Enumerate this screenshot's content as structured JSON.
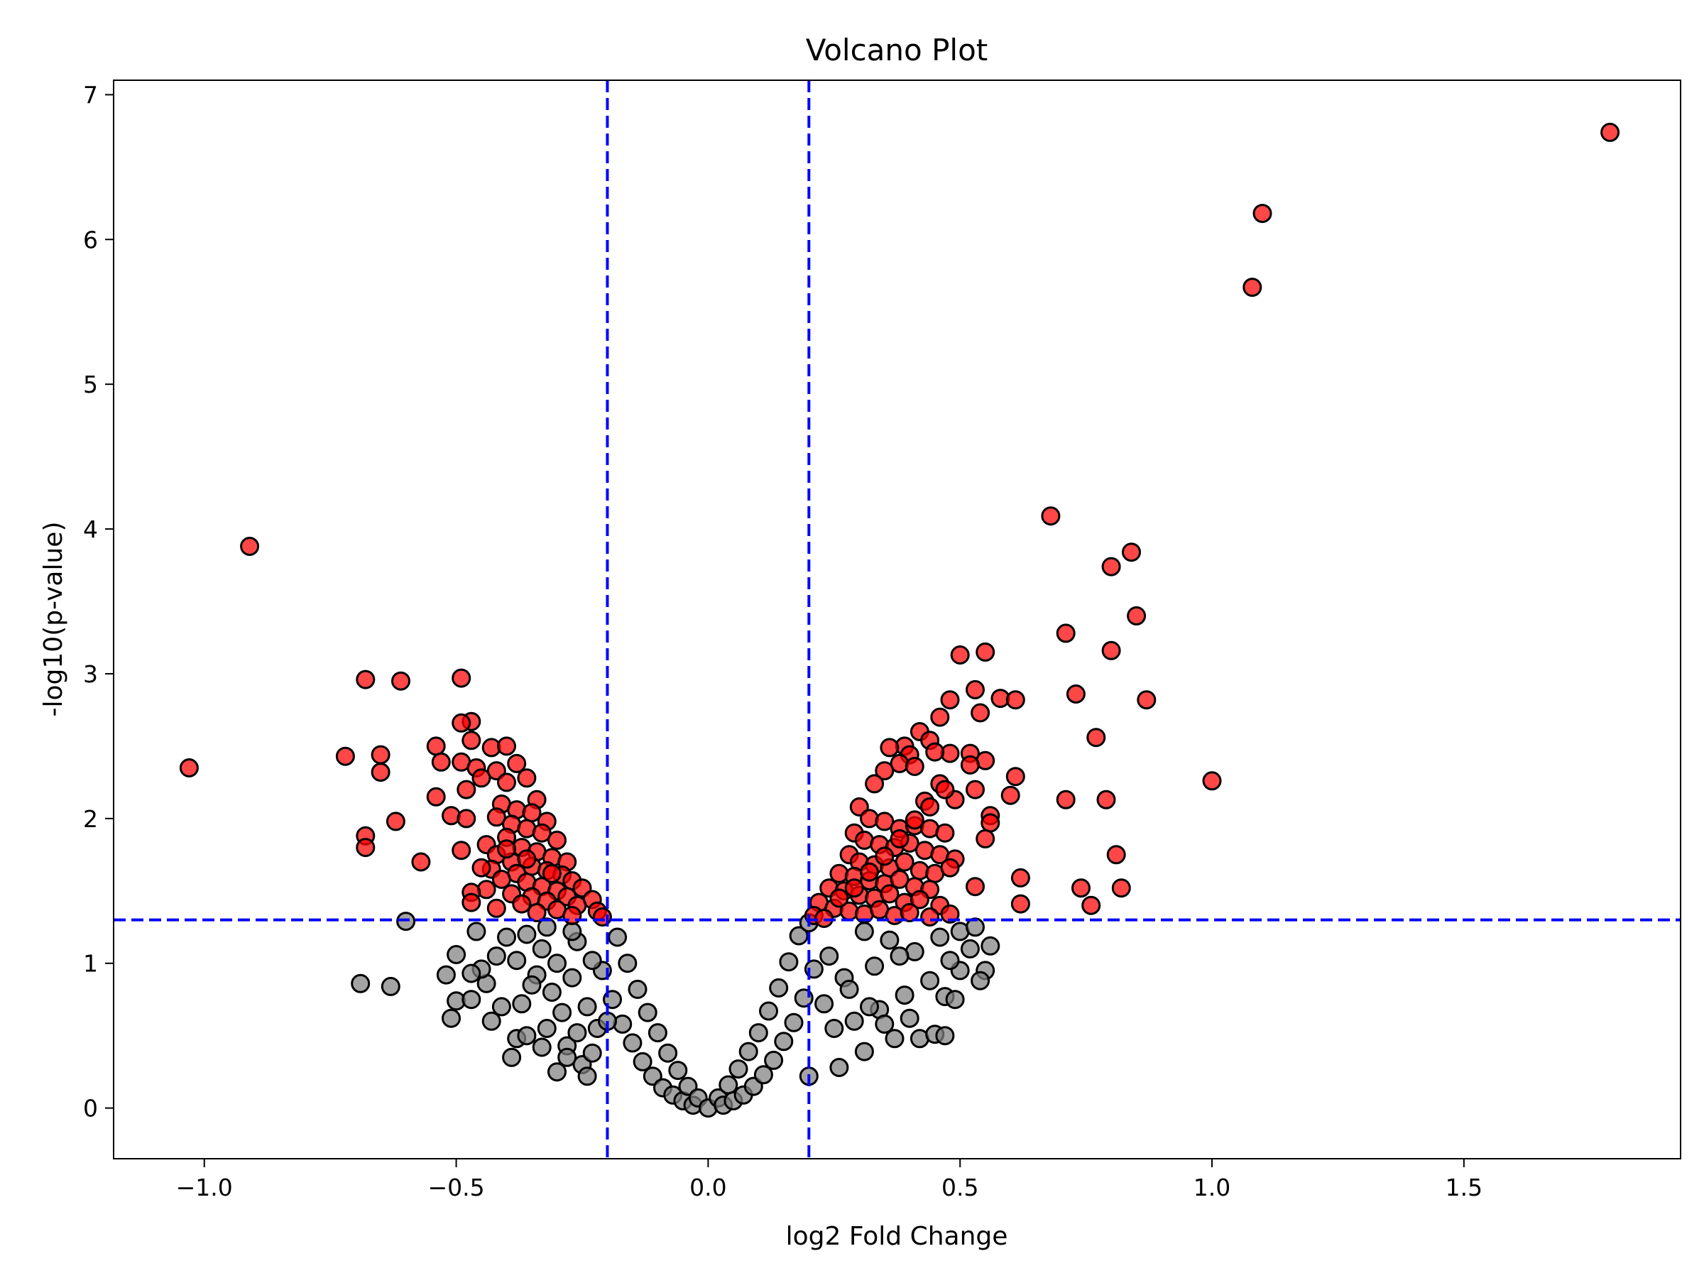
{
  "chart_data": {
    "type": "scatter",
    "title": "Volcano Plot",
    "xlabel": "log2 Fold Change",
    "ylabel": "-log10(p-value)",
    "xlim": [
      -1.18,
      1.93
    ],
    "ylim": [
      -0.35,
      7.1
    ],
    "xticks": [
      -1.0,
      -0.5,
      0.0,
      0.5,
      1.0,
      1.5
    ],
    "xtick_labels": [
      "−1.0",
      "−0.5",
      "0.0",
      "0.5",
      "1.0",
      "1.5"
    ],
    "yticks": [
      0,
      1,
      2,
      3,
      4,
      5,
      6,
      7
    ],
    "ytick_labels": [
      "0",
      "1",
      "2",
      "3",
      "4",
      "5",
      "6",
      "7"
    ],
    "grid": false,
    "legend": "none",
    "thresholds": {
      "fold_change": [
        -0.2,
        0.2
      ],
      "neg_log10_p": 1.3
    },
    "colors": {
      "significant": "#ff0000",
      "not_significant": "#808080",
      "edge": "#000000",
      "threshold_line": "#0000ff"
    },
    "series": [
      {
        "name": "",
        "color": "#ff0000",
        "points": [
          [
            1.79,
            6.74
          ],
          [
            1.1,
            6.18
          ],
          [
            1.08,
            5.67
          ],
          [
            0.68,
            4.09
          ],
          [
            0.84,
            3.84
          ],
          [
            0.8,
            3.74
          ],
          [
            0.85,
            3.4
          ],
          [
            0.71,
            3.28
          ],
          [
            0.8,
            3.16
          ],
          [
            0.55,
            3.15
          ],
          [
            0.5,
            3.13
          ],
          [
            0.53,
            2.89
          ],
          [
            0.73,
            2.86
          ],
          [
            0.58,
            2.83
          ],
          [
            0.61,
            2.82
          ],
          [
            0.87,
            2.82
          ],
          [
            0.48,
            2.82
          ],
          [
            0.46,
            2.7
          ],
          [
            0.54,
            2.73
          ],
          [
            0.77,
            2.56
          ],
          [
            0.42,
            2.6
          ],
          [
            0.52,
            2.45
          ],
          [
            0.48,
            2.45
          ],
          [
            0.44,
            2.54
          ],
          [
            0.55,
            2.4
          ],
          [
            0.39,
            2.5
          ],
          [
            0.36,
            2.49
          ],
          [
            0.4,
            2.44
          ],
          [
            0.45,
            2.46
          ],
          [
            0.52,
            2.37
          ],
          [
            0.61,
            2.29
          ],
          [
            0.38,
            2.38
          ],
          [
            0.35,
            2.33
          ],
          [
            0.33,
            2.24
          ],
          [
            0.41,
            2.36
          ],
          [
            0.53,
            2.2
          ],
          [
            0.46,
            2.24
          ],
          [
            0.6,
            2.16
          ],
          [
            1.0,
            2.26
          ],
          [
            0.71,
            2.13
          ],
          [
            0.79,
            2.13
          ],
          [
            0.49,
            2.13
          ],
          [
            0.43,
            2.12
          ],
          [
            0.56,
            2.02
          ],
          [
            0.56,
            1.97
          ],
          [
            0.3,
            2.08
          ],
          [
            0.32,
            2.0
          ],
          [
            0.35,
            1.98
          ],
          [
            0.38,
            1.93
          ],
          [
            0.41,
            1.95
          ],
          [
            0.44,
            1.93
          ],
          [
            0.47,
            1.9
          ],
          [
            0.55,
            1.86
          ],
          [
            0.29,
            1.9
          ],
          [
            0.31,
            1.85
          ],
          [
            0.34,
            1.82
          ],
          [
            0.37,
            1.8
          ],
          [
            0.4,
            1.83
          ],
          [
            0.43,
            1.78
          ],
          [
            0.46,
            1.75
          ],
          [
            0.49,
            1.72
          ],
          [
            0.81,
            1.75
          ],
          [
            0.28,
            1.75
          ],
          [
            0.3,
            1.7
          ],
          [
            0.33,
            1.68
          ],
          [
            0.36,
            1.66
          ],
          [
            0.39,
            1.7
          ],
          [
            0.42,
            1.64
          ],
          [
            0.45,
            1.62
          ],
          [
            0.48,
            1.66
          ],
          [
            0.26,
            1.62
          ],
          [
            0.29,
            1.6
          ],
          [
            0.32,
            1.57
          ],
          [
            0.35,
            1.55
          ],
          [
            0.38,
            1.58
          ],
          [
            0.41,
            1.53
          ],
          [
            0.44,
            1.51
          ],
          [
            0.62,
            1.59
          ],
          [
            0.53,
            1.53
          ],
          [
            0.24,
            1.52
          ],
          [
            0.27,
            1.5
          ],
          [
            0.3,
            1.47
          ],
          [
            0.33,
            1.45
          ],
          [
            0.36,
            1.48
          ],
          [
            0.39,
            1.42
          ],
          [
            0.42,
            1.44
          ],
          [
            0.46,
            1.4
          ],
          [
            0.74,
            1.52
          ],
          [
            0.82,
            1.52
          ],
          [
            0.62,
            1.41
          ],
          [
            0.22,
            1.42
          ],
          [
            0.25,
            1.38
          ],
          [
            0.28,
            1.36
          ],
          [
            0.31,
            1.34
          ],
          [
            0.34,
            1.37
          ],
          [
            0.37,
            1.33
          ],
          [
            0.4,
            1.35
          ],
          [
            0.44,
            1.32
          ],
          [
            0.48,
            1.34
          ],
          [
            0.76,
            1.4
          ],
          [
            0.21,
            1.33
          ],
          [
            0.23,
            1.31
          ],
          [
            0.26,
            1.45
          ],
          [
            0.29,
            1.52
          ],
          [
            0.32,
            1.63
          ],
          [
            0.35,
            1.74
          ],
          [
            0.38,
            1.86
          ],
          [
            0.41,
            1.99
          ],
          [
            0.44,
            2.08
          ],
          [
            0.47,
            2.2
          ],
          [
            -0.91,
            3.88
          ],
          [
            -0.49,
            2.97
          ],
          [
            -0.68,
            2.96
          ],
          [
            -0.61,
            2.95
          ],
          [
            -0.47,
            2.67
          ],
          [
            -0.49,
            2.66
          ],
          [
            -0.47,
            2.54
          ],
          [
            -0.54,
            2.5
          ],
          [
            -0.43,
            2.49
          ],
          [
            -0.4,
            2.5
          ],
          [
            -0.65,
            2.44
          ],
          [
            -0.72,
            2.43
          ],
          [
            -0.53,
            2.39
          ],
          [
            -0.49,
            2.39
          ],
          [
            -0.38,
            2.38
          ],
          [
            -1.03,
            2.35
          ],
          [
            -0.46,
            2.35
          ],
          [
            -0.42,
            2.33
          ],
          [
            -0.65,
            2.32
          ],
          [
            -0.45,
            2.28
          ],
          [
            -0.36,
            2.28
          ],
          [
            -0.4,
            2.25
          ],
          [
            -0.48,
            2.2
          ],
          [
            -0.54,
            2.15
          ],
          [
            -0.34,
            2.13
          ],
          [
            -0.41,
            2.1
          ],
          [
            -0.38,
            2.06
          ],
          [
            -0.51,
            2.02
          ],
          [
            -0.62,
            1.98
          ],
          [
            -0.48,
            2.0
          ],
          [
            -0.35,
            2.04
          ],
          [
            -0.42,
            2.01
          ],
          [
            -0.32,
            1.98
          ],
          [
            -0.39,
            1.96
          ],
          [
            -0.36,
            1.93
          ],
          [
            -0.68,
            1.88
          ],
          [
            -0.68,
            1.8
          ],
          [
            -0.33,
            1.9
          ],
          [
            -0.4,
            1.87
          ],
          [
            -0.3,
            1.85
          ],
          [
            -0.44,
            1.82
          ],
          [
            -0.37,
            1.8
          ],
          [
            -0.49,
            1.78
          ],
          [
            -0.34,
            1.77
          ],
          [
            -0.42,
            1.75
          ],
          [
            -0.57,
            1.7
          ],
          [
            -0.31,
            1.73
          ],
          [
            -0.28,
            1.7
          ],
          [
            -0.39,
            1.7
          ],
          [
            -0.35,
            1.67
          ],
          [
            -0.43,
            1.65
          ],
          [
            -0.32,
            1.64
          ],
          [
            -0.38,
            1.62
          ],
          [
            -0.29,
            1.61
          ],
          [
            -0.41,
            1.58
          ],
          [
            -0.36,
            1.56
          ],
          [
            -0.27,
            1.57
          ],
          [
            -0.33,
            1.53
          ],
          [
            -0.44,
            1.51
          ],
          [
            -0.3,
            1.5
          ],
          [
            -0.25,
            1.52
          ],
          [
            -0.39,
            1.48
          ],
          [
            -0.35,
            1.46
          ],
          [
            -0.47,
            1.49
          ],
          [
            -0.28,
            1.46
          ],
          [
            -0.32,
            1.43
          ],
          [
            -0.47,
            1.42
          ],
          [
            -0.23,
            1.44
          ],
          [
            -0.37,
            1.41
          ],
          [
            -0.26,
            1.4
          ],
          [
            -0.42,
            1.38
          ],
          [
            -0.3,
            1.37
          ],
          [
            -0.22,
            1.36
          ],
          [
            -0.34,
            1.35
          ],
          [
            -0.27,
            1.33
          ],
          [
            -0.21,
            1.32
          ],
          [
            -0.45,
            1.66
          ],
          [
            -0.4,
            1.79
          ],
          [
            -0.36,
            1.72
          ],
          [
            -0.31,
            1.62
          ]
        ]
      },
      {
        "name": "",
        "color": "#808080",
        "points": [
          [
            -0.69,
            0.86
          ],
          [
            -0.63,
            0.84
          ],
          [
            -0.51,
            0.62
          ],
          [
            -0.52,
            0.92
          ],
          [
            -0.5,
            0.74
          ],
          [
            -0.47,
            0.75
          ],
          [
            -0.39,
            0.35
          ],
          [
            -0.6,
            1.29
          ],
          [
            -0.5,
            1.06
          ],
          [
            -0.44,
            0.86
          ],
          [
            -0.45,
            0.96
          ],
          [
            -0.47,
            0.93
          ],
          [
            -0.38,
            0.48
          ],
          [
            -0.36,
            0.5
          ],
          [
            -0.3,
            0.25
          ],
          [
            -0.42,
            1.05
          ],
          [
            -0.37,
            0.72
          ],
          [
            -0.32,
            0.55
          ],
          [
            -0.28,
            0.43
          ],
          [
            -0.25,
            0.3
          ],
          [
            -0.34,
            0.92
          ],
          [
            -0.29,
            0.66
          ],
          [
            -0.26,
            0.52
          ],
          [
            -0.23,
            0.38
          ],
          [
            -0.4,
            1.18
          ],
          [
            -0.33,
            1.1
          ],
          [
            -0.31,
            0.8
          ],
          [
            -0.27,
            0.9
          ],
          [
            -0.24,
            0.7
          ],
          [
            -0.22,
            0.55
          ],
          [
            -0.46,
            1.22
          ],
          [
            -0.38,
            1.02
          ],
          [
            -0.35,
            0.85
          ],
          [
            -0.3,
            1.0
          ],
          [
            -0.26,
            1.15
          ],
          [
            -0.21,
            0.95
          ],
          [
            -0.19,
            0.75
          ],
          [
            -0.17,
            0.58
          ],
          [
            -0.15,
            0.45
          ],
          [
            -0.13,
            0.32
          ],
          [
            -0.11,
            0.22
          ],
          [
            -0.09,
            0.14
          ],
          [
            -0.07,
            0.09
          ],
          [
            -0.05,
            0.05
          ],
          [
            -0.03,
            0.02
          ],
          [
            -0.18,
            1.18
          ],
          [
            -0.16,
            1.0
          ],
          [
            -0.14,
            0.82
          ],
          [
            -0.12,
            0.66
          ],
          [
            -0.1,
            0.52
          ],
          [
            -0.08,
            0.38
          ],
          [
            -0.06,
            0.26
          ],
          [
            -0.04,
            0.15
          ],
          [
            -0.02,
            0.07
          ],
          [
            0.0,
            0.0
          ],
          [
            0.02,
            0.07
          ],
          [
            0.04,
            0.16
          ],
          [
            0.06,
            0.27
          ],
          [
            0.08,
            0.39
          ],
          [
            0.1,
            0.52
          ],
          [
            0.12,
            0.67
          ],
          [
            0.14,
            0.83
          ],
          [
            0.16,
            1.01
          ],
          [
            0.18,
            1.19
          ],
          [
            0.2,
            1.28
          ],
          [
            0.03,
            0.02
          ],
          [
            0.05,
            0.05
          ],
          [
            0.07,
            0.09
          ],
          [
            0.09,
            0.15
          ],
          [
            0.11,
            0.23
          ],
          [
            0.13,
            0.33
          ],
          [
            0.15,
            0.46
          ],
          [
            0.17,
            0.59
          ],
          [
            0.19,
            0.76
          ],
          [
            0.21,
            0.96
          ],
          [
            0.2,
            0.22
          ],
          [
            0.26,
            0.28
          ],
          [
            0.31,
            0.39
          ],
          [
            0.37,
            0.48
          ],
          [
            0.42,
            0.48
          ],
          [
            0.45,
            0.51
          ],
          [
            0.47,
            0.5
          ],
          [
            0.29,
            0.6
          ],
          [
            0.34,
            0.68
          ],
          [
            0.39,
            0.78
          ],
          [
            0.44,
            0.88
          ],
          [
            0.5,
            0.95
          ],
          [
            0.55,
            0.95
          ],
          [
            0.54,
            0.88
          ],
          [
            0.52,
            1.1
          ],
          [
            0.56,
            1.12
          ],
          [
            0.48,
            1.02
          ],
          [
            0.41,
            1.08
          ],
          [
            0.36,
            1.16
          ],
          [
            0.31,
            1.22
          ],
          [
            0.24,
            1.05
          ],
          [
            0.27,
            0.9
          ],
          [
            0.33,
            0.98
          ],
          [
            0.38,
            1.05
          ],
          [
            0.46,
            1.18
          ],
          [
            0.5,
            1.22
          ],
          [
            0.53,
            1.25
          ],
          [
            0.47,
            0.77
          ],
          [
            0.49,
            0.75
          ],
          [
            0.4,
            0.62
          ],
          [
            0.23,
            0.72
          ],
          [
            0.25,
            0.55
          ],
          [
            0.28,
            0.82
          ],
          [
            0.32,
            0.7
          ],
          [
            0.35,
            0.58
          ],
          [
            -0.2,
            0.6
          ],
          [
            -0.23,
            1.02
          ],
          [
            -0.27,
            1.22
          ],
          [
            -0.32,
            1.25
          ],
          [
            -0.36,
            1.2
          ],
          [
            -0.41,
            0.7
          ],
          [
            -0.43,
            0.6
          ],
          [
            -0.33,
            0.42
          ],
          [
            -0.28,
            0.35
          ],
          [
            -0.24,
            0.22
          ]
        ]
      }
    ]
  }
}
